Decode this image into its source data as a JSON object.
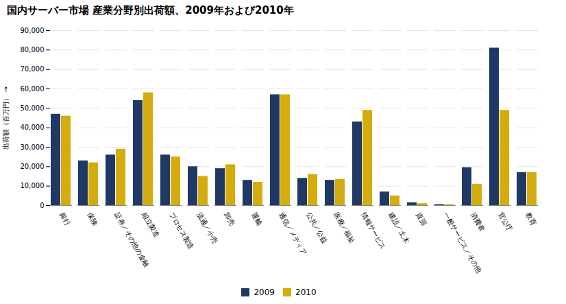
{
  "chart_data": {
    "type": "bar",
    "title": "国内サーバー市場 産業分野別出荷額、2009年および2010年",
    "ylabel": "出荷額（百万円）",
    "categories": [
      "銀行",
      "保険",
      "証券／その他の金融",
      "組立製造",
      "プロセス製造",
      "流通／小売",
      "卸売",
      "運輸",
      "通信／メディア",
      "公共／公益",
      "医療／福祉",
      "情報サービス",
      "建設／土木",
      "資源",
      "一般サービス／その他",
      "消費者",
      "官公庁",
      "教育"
    ],
    "series": [
      {
        "name": "2009",
        "color": "#1F3864",
        "values": [
          47000,
          23000,
          26000,
          54000,
          26000,
          20000,
          19000,
          13000,
          57000,
          14000,
          13000,
          43000,
          7000,
          1500,
          500,
          19500,
          81000,
          17000
        ]
      },
      {
        "name": "2010",
        "color": "#D4AC0D",
        "values": [
          46000,
          22000,
          29000,
          58000,
          25000,
          15000,
          21000,
          12000,
          57000,
          16000,
          13500,
          49000,
          5000,
          1000,
          500,
          11000,
          49000,
          17000
        ]
      }
    ],
    "ylim": [
      0,
      90000
    ],
    "yticks": [
      0,
      {
        "value": 10000,
        "label": "10,000"
      },
      {
        "value": 20000,
        "label": "20,000"
      },
      {
        "value": 30000,
        "label": "30,000"
      },
      {
        "value": 40000,
        "label": "40,000"
      },
      {
        "value": 50000,
        "label": "50,000"
      },
      {
        "value": 60000,
        "label": "60,000"
      },
      {
        "value": 70000,
        "label": "70,000"
      },
      {
        "value": 80000,
        "label": "80,000"
      },
      {
        "value": 90000,
        "label": "90,000"
      }
    ],
    "grid": true,
    "legend": "bottom"
  }
}
